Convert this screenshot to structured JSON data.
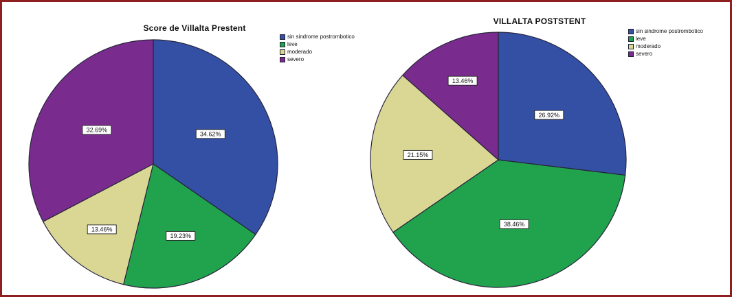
{
  "frame": {
    "border_color": "#8E1F1F",
    "background_color": "#FFFFFF"
  },
  "chart_data": [
    {
      "type": "pie",
      "title": "Score de Villalta Prestent",
      "categories": [
        "sin sindrome postrombotico",
        "leve",
        "moderado",
        "severo"
      ],
      "colors": [
        "#3450A5",
        "#21A34D",
        "#DAD795",
        "#7A2C8E"
      ],
      "values": [
        34.62,
        19.23,
        13.46,
        32.69
      ],
      "value_labels": [
        "34.62%",
        "19.23%",
        "13.46%",
        "32.69%"
      ],
      "start_angle": 0,
      "direction": "clockwise",
      "legend_position": "upper-right",
      "label_radius_fractions": [
        0.52,
        0.62,
        0.67,
        0.53
      ],
      "slice_outline_color": "#26243A",
      "label_box_fill": "#FFFFFF",
      "label_box_border": "#222222"
    },
    {
      "type": "pie",
      "title": "VILLALTA POSTSTENT",
      "categories": [
        "sin sindrome postrombotico",
        "leve",
        "moderado",
        "severo"
      ],
      "colors": [
        "#3450A5",
        "#21A34D",
        "#DAD795",
        "#7A2C8E"
      ],
      "values": [
        26.92,
        38.46,
        21.15,
        13.46
      ],
      "value_labels": [
        "26.92%",
        "38.46%",
        "21.15%",
        "13.46%"
      ],
      "start_angle": 0,
      "direction": "clockwise",
      "legend_position": "upper-right",
      "label_radius_fractions": [
        0.53,
        0.52,
        0.63,
        0.68
      ],
      "slice_outline_color": "#26243A",
      "label_box_fill": "#FFFFFF",
      "label_box_border": "#222222"
    }
  ]
}
